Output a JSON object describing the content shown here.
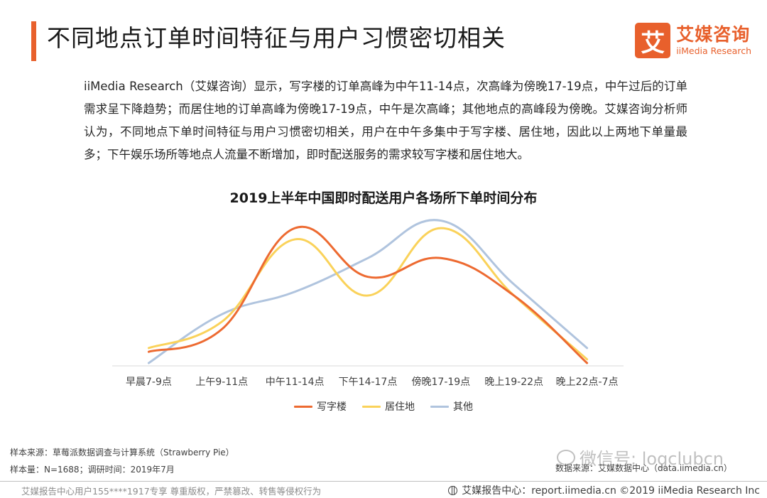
{
  "header": {
    "title": "不同地点订单时间特征与用户习惯密切相关",
    "brand_mark": "艾",
    "brand_cn": "艾媒咨询",
    "brand_en": "iiMedia Research"
  },
  "summary": "iiMedia Research（艾媒咨询）显示，写字楼的订单高峰为中午11-14点，次高峰为傍晚17-19点，中午过后的订单需求呈下降趋势；而居住地的订单高峰为傍晚17-19点，中午是次高峰；其他地点的高峰段为傍晚。艾媒咨询分析师认为，不同地点下单时间特征与用户习惯密切相关，用户在中午多集中于写字楼、居住地，因此以上两地下单量最多；下午娱乐场所等地点人流量不断增加，即时配送服务的需求较写字楼和居住地大。",
  "chart_data": {
    "type": "line",
    "smooth": true,
    "title": "2019上半年中国即时配送用户各场所下单时间分布",
    "categories": [
      "早晨7-9点",
      "上午9-11点",
      "中午11-14点",
      "下午14-17点",
      "傍晚17-19点",
      "晚上19-22点",
      "晚上22点-7点"
    ],
    "series": [
      {
        "name": "写字楼",
        "color": "#ed6a31",
        "values": [
          3,
          9,
          36,
          23,
          28,
          18,
          0
        ]
      },
      {
        "name": "居住地",
        "color": "#fad25a",
        "values": [
          4,
          11,
          33,
          18,
          36,
          18,
          1
        ]
      },
      {
        "name": "其他",
        "color": "#b0c4de",
        "values": [
          0,
          13,
          19,
          28,
          38,
          21,
          4
        ]
      }
    ],
    "ylim": [
      0,
      40
    ],
    "grid": false,
    "y_axis_shown": false,
    "legend_position": "bottom"
  },
  "footer": {
    "source_left": "样本来源：草莓派数据调查与计算系统（Strawberry Pie）",
    "sample": "样本量：N=1688；调研时间：2019年7月",
    "source_right": "数据来源：艾媒数据中心（data.iimedia.cn）",
    "watermark": "微信号: logclubcn",
    "copyright_left": "艾媒报告中心用户155****1917专享 尊重版权，严禁篡改、转售等侵权行为",
    "copyright_right": "艾媒报告中心：report.iimedia.cn  ©2019  iiMedia Research  Inc"
  }
}
